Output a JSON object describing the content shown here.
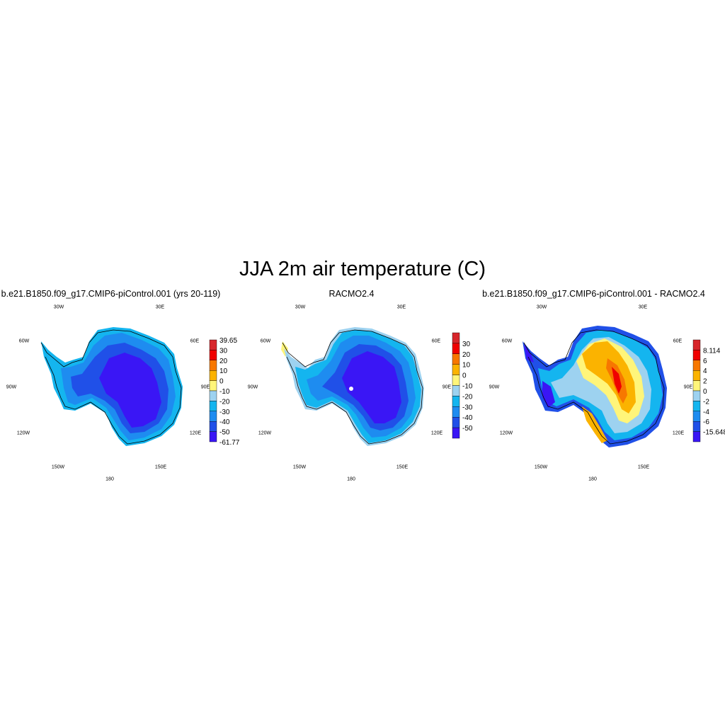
{
  "figure": {
    "title": "JJA 2m air temperature (C)"
  },
  "lon_labels": [
    "30W",
    "30E",
    "60W",
    "60E",
    "90W",
    "90E",
    "120W",
    "120E",
    "150W",
    "150E",
    "180"
  ],
  "panels": [
    {
      "title": "b.e21.B1850.f09_g17.CMIP6-piControl.001 (yrs 20-119)",
      "colorbar": {
        "labels": [
          "39.65",
          "30",
          "20",
          "10",
          "0",
          "-10",
          "-20",
          "-30",
          "-40",
          "-50",
          "-61.77"
        ],
        "colors": [
          "#d7262b",
          "#f00000",
          "#f77700",
          "#fbb300",
          "#fff57a",
          "#9dd2f0",
          "#14b5ef",
          "#1e8cf0",
          "#2050e8",
          "#3a16f5"
        ]
      }
    },
    {
      "title": "RACMO2.4",
      "colorbar": {
        "labels": [
          "30",
          "20",
          "10",
          "0",
          "-10",
          "-20",
          "-30",
          "-40",
          "-50"
        ],
        "colors": [
          "#d7262b",
          "#f00000",
          "#f77700",
          "#fbb300",
          "#fff57a",
          "#9dd2f0",
          "#14b5ef",
          "#1e8cf0",
          "#2050e8",
          "#3a16f5"
        ]
      }
    },
    {
      "title": "b.e21.B1850.f09_g17.CMIP6-piControl.001 - RACMO2.4",
      "colorbar": {
        "labels": [
          "8.114",
          "6",
          "4",
          "2",
          "0",
          "-2",
          "-4",
          "-6",
          "-15.648"
        ],
        "colors": [
          "#d7262b",
          "#f00000",
          "#f77700",
          "#fbb300",
          "#fff57a",
          "#9dd2f0",
          "#14b5ef",
          "#1e8cf0",
          "#2050e8",
          "#3a16f5"
        ]
      }
    }
  ]
}
